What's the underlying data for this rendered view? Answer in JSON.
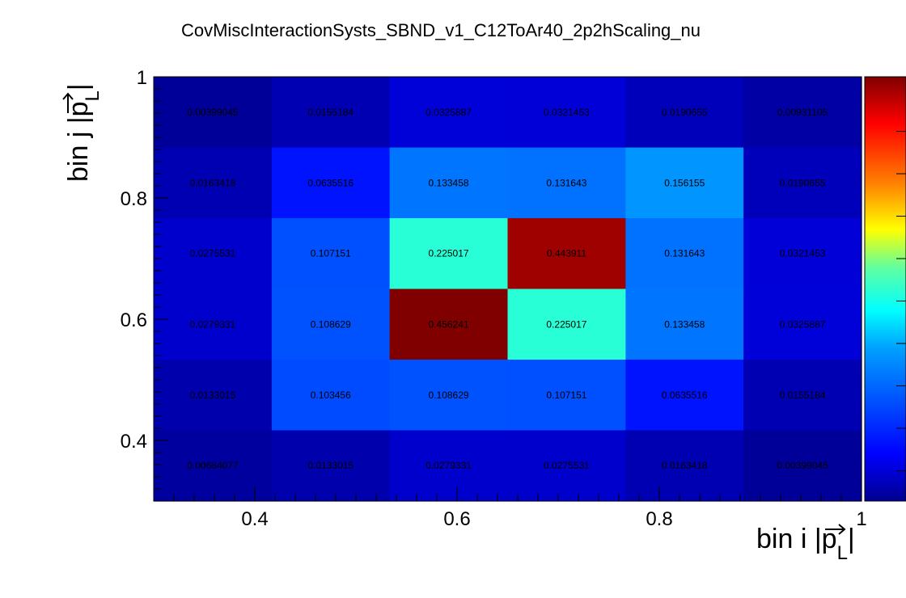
{
  "chart_data": {
    "type": "heatmap",
    "title": "CovMiscInteractionSysts_SBND_v1_C12ToAr40_2p2hScaling_nu",
    "xlabel": {
      "main": "bin i |p",
      "sub": "L",
      "close": "|"
    },
    "ylabel": {
      "main": "bin j |p",
      "sub": "L",
      "close": "|"
    },
    "xlim": [
      0.3,
      1.0
    ],
    "ylim": [
      0.3,
      1.0
    ],
    "x_ticks": [
      {
        "value": 0.4,
        "label": "0.4"
      },
      {
        "value": 0.6,
        "label": "0.6"
      },
      {
        "value": 0.8,
        "label": "0.8"
      },
      {
        "value": 1.0,
        "label": "1"
      }
    ],
    "y_ticks": [
      {
        "value": 0.4,
        "label": "0.4"
      },
      {
        "value": 0.6,
        "label": "0.6"
      },
      {
        "value": 0.8,
        "label": "0.8"
      },
      {
        "value": 1.0,
        "label": "1"
      }
    ],
    "x_bin_edges": [
      0.3,
      0.4167,
      0.5333,
      0.65,
      0.7667,
      0.8833,
      1.0
    ],
    "y_bin_edges": [
      0.3,
      0.4167,
      0.5333,
      0.65,
      0.7667,
      0.8833,
      1.0
    ],
    "z_max": 0.456241,
    "rows_top_to_bottom": [
      [
        "0.00399045",
        "0.0155184",
        "0.0325887",
        "0.0321453",
        "0.0190655",
        "0.00931105"
      ],
      [
        "0.0163418",
        "0.0635516",
        "0.133458",
        "0.131643",
        "0.156155",
        "0.0190655"
      ],
      [
        "0.0275531",
        "0.107151",
        "0.225017",
        "0.443911",
        "0.131643",
        "0.0321453"
      ],
      [
        "0.0279331",
        "0.108629",
        "0.456241",
        "0.225017",
        "0.133458",
        "0.0325887"
      ],
      [
        "0.0133015",
        "0.103456",
        "0.108629",
        "0.107151",
        "0.0635516",
        "0.0155184"
      ],
      [
        "0.00684077",
        "0.0133015",
        "0.0279331",
        "0.0275531",
        "0.0163418",
        "0.00399045"
      ]
    ],
    "colorbar": {
      "position": "right",
      "ticks_labeled": false
    },
    "grid": false
  }
}
